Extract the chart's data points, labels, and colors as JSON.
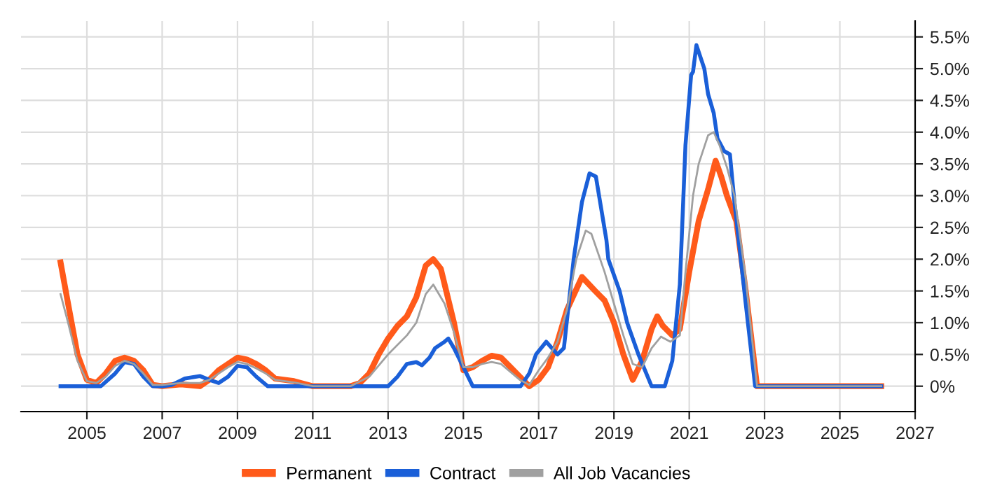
{
  "chart_data": {
    "type": "line",
    "xlim": [
      2003.25,
      2027
    ],
    "xticks": [
      2005,
      2007,
      2009,
      2011,
      2013,
      2015,
      2017,
      2019,
      2021,
      2023,
      2025,
      2027
    ],
    "ylim": [
      -0.4,
      5.75
    ],
    "yticks": [
      {
        "value": 0,
        "label": "0%"
      },
      {
        "value": 0.5,
        "label": "0.5%"
      },
      {
        "value": 1,
        "label": "1.0%"
      },
      {
        "value": 1.5,
        "label": "1.5%"
      },
      {
        "value": 2,
        "label": "2.0%"
      },
      {
        "value": 2.5,
        "label": "2.5%"
      },
      {
        "value": 3,
        "label": "3.0%"
      },
      {
        "value": 3.5,
        "label": "3.5%"
      },
      {
        "value": 4,
        "label": "4.0%"
      },
      {
        "value": 4.5,
        "label": "4.5%"
      },
      {
        "value": 5,
        "label": "5.0%"
      },
      {
        "value": 5.5,
        "label": "5.5%"
      }
    ],
    "grid": true,
    "legend": "bottom",
    "marker": "none",
    "line_style": "solid",
    "series": [
      {
        "name": "Permanent",
        "color": "#ff5a1a",
        "x": [
          2004.3,
          2004.5,
          2004.75,
          2005.0,
          2005.25,
          2005.5,
          2005.75,
          2006.0,
          2006.25,
          2006.5,
          2006.75,
          2007.0,
          2007.5,
          2008.0,
          2008.25,
          2008.5,
          2008.75,
          2009.0,
          2009.25,
          2009.5,
          2009.75,
          2010.0,
          2010.5,
          2011.0,
          2012.0,
          2012.25,
          2012.5,
          2012.75,
          2013.0,
          2013.25,
          2013.5,
          2013.75,
          2014.0,
          2014.2,
          2014.4,
          2014.75,
          2015.0,
          2015.25,
          2015.5,
          2015.75,
          2016.0,
          2016.25,
          2016.5,
          2016.75,
          2017.0,
          2017.25,
          2017.5,
          2017.75,
          2018.15,
          2018.5,
          2018.75,
          2019.0,
          2019.25,
          2019.5,
          2019.75,
          2020.0,
          2020.15,
          2020.3,
          2020.55,
          2020.75,
          2021.0,
          2021.25,
          2021.5,
          2021.7,
          2021.85,
          2022.0,
          2022.25,
          2022.5,
          2022.8,
          2026.1
        ],
        "values": [
          1.95,
          1.3,
          0.5,
          0.1,
          0.05,
          0.2,
          0.4,
          0.45,
          0.4,
          0.25,
          0.02,
          0.0,
          0.03,
          0.0,
          0.1,
          0.25,
          0.35,
          0.45,
          0.42,
          0.35,
          0.25,
          0.12,
          0.08,
          0.0,
          0.0,
          0.05,
          0.2,
          0.5,
          0.75,
          0.95,
          1.1,
          1.4,
          1.9,
          2.0,
          1.85,
          1.0,
          0.25,
          0.3,
          0.4,
          0.48,
          0.45,
          0.3,
          0.15,
          0.0,
          0.1,
          0.3,
          0.7,
          1.2,
          1.72,
          1.5,
          1.35,
          1.0,
          0.5,
          0.1,
          0.4,
          0.9,
          1.1,
          0.95,
          0.8,
          0.9,
          1.8,
          2.6,
          3.1,
          3.55,
          3.3,
          3.0,
          2.6,
          1.5,
          0.0,
          0.0
        ]
      },
      {
        "name": "Contract",
        "color": "#1a5fd8",
        "x": [
          2004.3,
          2005.37,
          2005.75,
          2006.0,
          2006.25,
          2006.5,
          2006.75,
          2007.0,
          2007.25,
          2007.6,
          2008.0,
          2008.25,
          2008.5,
          2008.75,
          2009.0,
          2009.25,
          2009.5,
          2009.8,
          2013.0,
          2013.25,
          2013.5,
          2013.75,
          2013.9,
          2014.1,
          2014.25,
          2014.5,
          2014.6,
          2014.75,
          2015.0,
          2015.25,
          2016.52,
          2016.75,
          2016.93,
          2017.2,
          2017.5,
          2017.67,
          2017.93,
          2018.15,
          2018.35,
          2018.52,
          2018.8,
          2018.85,
          2019.15,
          2019.35,
          2019.65,
          2020.0,
          2020.35,
          2020.55,
          2020.75,
          2020.9,
          2021.05,
          2021.1,
          2021.19,
          2021.4,
          2021.5,
          2021.65,
          2021.75,
          2021.93,
          2022.08,
          2022.2,
          2022.5,
          2022.75,
          2026.1
        ],
        "values": [
          0.0,
          0.0,
          0.2,
          0.38,
          0.35,
          0.15,
          0.0,
          0.0,
          0.02,
          0.12,
          0.16,
          0.1,
          0.05,
          0.15,
          0.32,
          0.3,
          0.15,
          0.0,
          0.0,
          0.15,
          0.35,
          0.38,
          0.33,
          0.45,
          0.6,
          0.7,
          0.75,
          0.6,
          0.3,
          0.0,
          0.0,
          0.2,
          0.5,
          0.7,
          0.5,
          0.6,
          2.0,
          2.9,
          3.35,
          3.3,
          2.3,
          2.0,
          1.5,
          1.0,
          0.5,
          0.0,
          0.0,
          0.4,
          1.6,
          3.8,
          4.9,
          4.95,
          5.37,
          5.0,
          4.6,
          4.3,
          3.9,
          3.7,
          3.65,
          2.9,
          1.3,
          0.0,
          0.0
        ]
      },
      {
        "name": "All Job Vacancies",
        "color": "#a0a0a0",
        "x": [
          2004.3,
          2004.5,
          2004.75,
          2005.0,
          2005.25,
          2005.5,
          2005.75,
          2006.0,
          2006.25,
          2006.5,
          2006.75,
          2007.0,
          2007.5,
          2008.0,
          2008.25,
          2008.5,
          2008.75,
          2009.0,
          2009.25,
          2009.5,
          2009.75,
          2010.0,
          2010.5,
          2011.0,
          2012.0,
          2012.5,
          2013.0,
          2013.5,
          2013.75,
          2014.0,
          2014.2,
          2014.5,
          2014.75,
          2015.0,
          2015.25,
          2015.5,
          2015.75,
          2016.0,
          2016.5,
          2016.75,
          2017.0,
          2017.25,
          2017.5,
          2017.75,
          2018.0,
          2018.25,
          2018.4,
          2018.75,
          2019.0,
          2019.25,
          2019.5,
          2019.75,
          2020.0,
          2020.25,
          2020.5,
          2020.75,
          2020.9,
          2021.1,
          2021.25,
          2021.5,
          2021.65,
          2021.8,
          2022.0,
          2022.2,
          2022.5,
          2022.8,
          2026.1
        ],
        "values": [
          1.45,
          1.0,
          0.4,
          0.08,
          0.05,
          0.15,
          0.32,
          0.4,
          0.35,
          0.2,
          0.02,
          0.02,
          0.05,
          0.05,
          0.1,
          0.2,
          0.3,
          0.38,
          0.35,
          0.28,
          0.2,
          0.1,
          0.06,
          0.0,
          0.0,
          0.15,
          0.5,
          0.8,
          1.0,
          1.45,
          1.6,
          1.3,
          0.85,
          0.3,
          0.3,
          0.35,
          0.38,
          0.35,
          0.1,
          0.02,
          0.25,
          0.45,
          0.7,
          1.2,
          2.0,
          2.45,
          2.4,
          1.8,
          1.3,
          0.8,
          0.35,
          0.3,
          0.6,
          0.78,
          0.7,
          0.8,
          1.8,
          3.0,
          3.5,
          3.95,
          4.0,
          3.8,
          3.45,
          3.0,
          1.7,
          0.0,
          0.0
        ]
      }
    ]
  }
}
